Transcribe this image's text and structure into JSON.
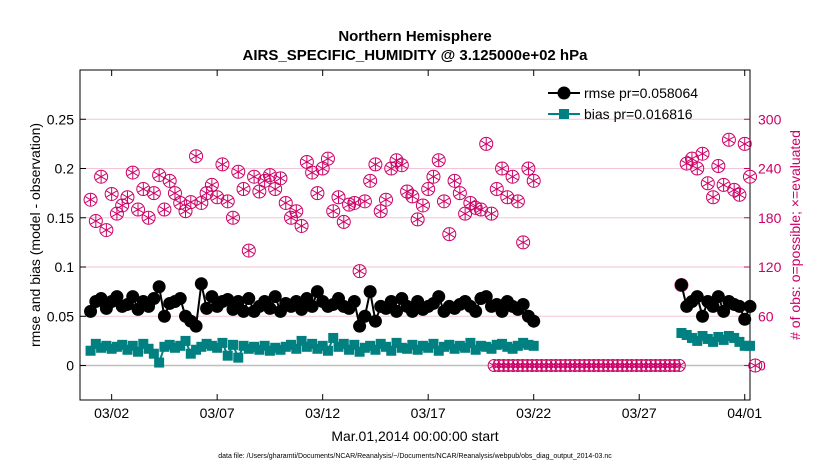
{
  "colors": {
    "rmse": "#000000",
    "bias": "#008080",
    "obs": "#cc0066",
    "zero_line": "#bfbfbf",
    "grid": "#f2c6d6"
  },
  "chart_data": {
    "type": "line",
    "title": "Northern Hemisphere",
    "subtitle": "AIRS_SPECIFIC_HUMIDITY @ 3.125000e+02 hPa",
    "xlabel": "Mar.01,2014 00:00:00 start",
    "ylabel_left": "rmse and bias (model - observation)",
    "ylabel_right": "# of obs: o=possible; ×=evaluated",
    "footnote": "data file: /Users/gharamti/Documents/NCAR/Reanalysis/~/Documents/NCAR/Reanalysis/webpub/obs_diag_output_2014-03.nc",
    "xlim": [
      0.5,
      32.25
    ],
    "ylim_left": [
      -0.035,
      0.3
    ],
    "ylim_right": [
      -42,
      360
    ],
    "x_ticks": [
      2,
      7,
      12,
      17,
      22,
      27,
      32
    ],
    "x_tick_labels": [
      "03/02",
      "03/07",
      "03/12",
      "03/17",
      "03/22",
      "03/27",
      "04/01"
    ],
    "y_left_ticks": [
      "0",
      "0.05",
      "0.1",
      "0.15",
      "0.2",
      "0.25"
    ],
    "y_right_ticks": [
      "0",
      "60",
      "120",
      "180",
      "240",
      "300"
    ],
    "legend": [
      {
        "name": "rmse",
        "label": "rmse pr=0.058064"
      },
      {
        "name": "bias",
        "label": "bias pr=0.016816"
      }
    ],
    "series": [
      {
        "name": "rmse",
        "axis": "left",
        "values": [
          0.055,
          0.065,
          0.068,
          0.058,
          0.065,
          0.07,
          0.06,
          0.062,
          0.07,
          0.057,
          0.065,
          0.06,
          0.068,
          0.08,
          0.05,
          0.063,
          0.065,
          0.068,
          0.05,
          0.045,
          0.04,
          0.083,
          0.058,
          0.07,
          0.06,
          0.065,
          0.067,
          0.057,
          0.065,
          0.055,
          0.068,
          0.055,
          0.06,
          0.065,
          0.058,
          0.07,
          0.055,
          0.063,
          0.06,
          0.065,
          0.057,
          0.068,
          0.06,
          0.075,
          0.065,
          0.06,
          0.062,
          0.068,
          0.06,
          0.058,
          0.065,
          0.04,
          0.05,
          0.075,
          0.045,
          0.06,
          0.058,
          0.065,
          0.055,
          0.068,
          0.06,
          0.055,
          0.065,
          0.057,
          0.06,
          0.063,
          0.07,
          0.055,
          0.06,
          0.058,
          0.062,
          0.065,
          0.06,
          0.055,
          0.068,
          0.07,
          0.06,
          0.062,
          0.055,
          0.065,
          0.06,
          0.057,
          0.062,
          0.05,
          0.045,
          null,
          null,
          null,
          null,
          null,
          null,
          null,
          null,
          null,
          null,
          null,
          null,
          null,
          null,
          null,
          null,
          null,
          null,
          null,
          null,
          null,
          null,
          null,
          null,
          null,
          0.082,
          0.06,
          0.065,
          0.07,
          0.05,
          0.065,
          0.06,
          0.07,
          0.055,
          0.065,
          0.062,
          0.06,
          0.047,
          0.06
        ],
        "start_x": 1.0
      },
      {
        "name": "bias",
        "axis": "left",
        "values": [
          0.015,
          0.022,
          0.018,
          0.02,
          0.017,
          0.019,
          0.021,
          0.016,
          0.02,
          0.014,
          0.022,
          0.017,
          0.012,
          0.003,
          0.019,
          0.021,
          0.018,
          0.02,
          0.025,
          0.012,
          0.016,
          0.019,
          0.022,
          0.02,
          0.018,
          0.023,
          0.01,
          0.021,
          0.008,
          0.02,
          0.017,
          0.019,
          0.016,
          0.02,
          0.015,
          0.018,
          0.016,
          0.019,
          0.021,
          0.017,
          0.025,
          0.019,
          0.022,
          0.017,
          0.02,
          0.015,
          0.028,
          0.019,
          0.022,
          0.016,
          0.021,
          0.014,
          0.018,
          0.02,
          0.016,
          0.022,
          0.019,
          0.015,
          0.023,
          0.018,
          0.017,
          0.021,
          0.016,
          0.02,
          0.018,
          0.022,
          0.015,
          0.019,
          0.021,
          0.017,
          0.02,
          0.018,
          0.023,
          0.016,
          0.02,
          0.019,
          0.017,
          0.021,
          0.022,
          0.019,
          0.017,
          0.02,
          0.023,
          0.021,
          0.02,
          null,
          null,
          null,
          null,
          null,
          null,
          null,
          null,
          null,
          null,
          null,
          null,
          null,
          null,
          null,
          null,
          null,
          null,
          null,
          null,
          null,
          null,
          null,
          null,
          null,
          0.033,
          0.031,
          0.028,
          0.025,
          0.03,
          0.027,
          0.024,
          0.029,
          0.026,
          0.03,
          0.028,
          0.024,
          0.02,
          0.02
        ],
        "start_x": 1.0
      },
      {
        "name": "obs_possible",
        "axis": "right",
        "values": [
          202,
          176,
          230,
          165,
          209,
          185,
          195,
          205,
          235,
          190,
          215,
          180,
          210,
          232,
          190,
          225,
          210,
          198,
          188,
          199,
          255,
          198,
          210,
          220,
          205,
          245,
          200,
          180,
          236,
          215,
          140,
          230,
          212,
          225,
          232,
          215,
          228,
          198,
          180,
          188,
          170,
          248,
          235,
          210,
          240,
          252,
          188,
          205,
          175,
          196,
          198,
          115,
          200,
          225,
          245,
          188,
          202,
          240,
          250,
          244,
          212,
          206,
          178,
          195,
          215,
          230,
          250,
          200,
          160,
          225,
          210,
          185,
          198,
          192,
          190,
          270,
          185,
          215,
          240,
          205,
          230,
          200,
          150,
          240,
          225,
          255,
          230,
          200,
          230,
          130,
          245,
          255,
          225,
          240,
          230,
          220,
          205,
          200,
          210,
          250,
          225,
          215,
          205,
          240,
          262,
          190,
          275,
          200,
          230,
          220,
          228,
          250,
          100
        ],
        "start_x": 1.0,
        "step": 0.1875,
        "after_gap": [
          0,
          0,
          0,
          0,
          0,
          0,
          0,
          0,
          0,
          0,
          0,
          0,
          0,
          0,
          0,
          0,
          0,
          0,
          0,
          0,
          0,
          0,
          0,
          0,
          0,
          0,
          0,
          0,
          0,
          0,
          0,
          0,
          0,
          0,
          0,
          0,
          0,
          0,
          0,
          0,
          0,
          0,
          0,
          0,
          0,
          0,
          0,
          0
        ],
        "resume": [
          98,
          246,
          252,
          240,
          258,
          222,
          205,
          243,
          220,
          275,
          214,
          208,
          270,
          230,
          0
        ]
      }
    ]
  }
}
